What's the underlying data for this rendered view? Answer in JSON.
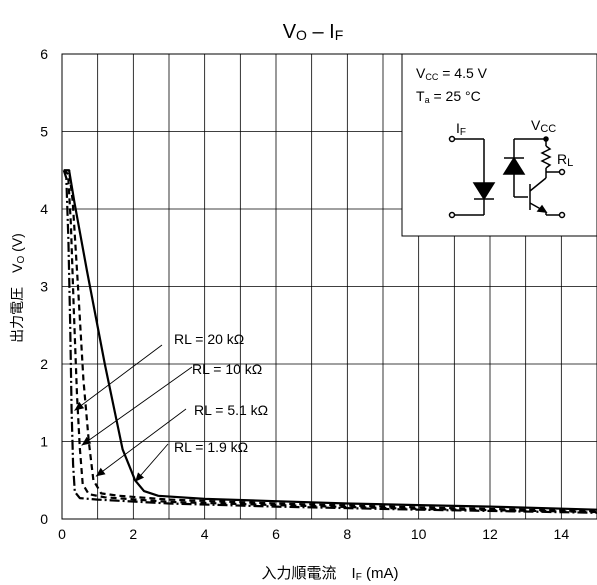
{
  "chart_data": {
    "type": "line",
    "title": "VO – IF",
    "xlabel": "入力順電流　IF (mA)",
    "ylabel": "出力電圧　VO (V)",
    "xlim": [
      0,
      15
    ],
    "ylim": [
      0,
      6
    ],
    "xticks": [
      "0",
      "2",
      "4",
      "6",
      "8",
      "10",
      "12",
      "14"
    ],
    "yticks": [
      "0",
      "1",
      "2",
      "3",
      "4",
      "5",
      "6"
    ],
    "grid": true,
    "legend": "none",
    "conditions": [
      "VCC = 4.5 V",
      "Ta = 25 °C"
    ],
    "circuit_labels": {
      "input": "IF",
      "supply": "VCC",
      "load": "RL"
    },
    "series": [
      {
        "name": "RL = 1.9 kΩ",
        "style": "solid",
        "x": [
          0.05,
          0.2,
          0.35,
          0.7,
          1.2,
          1.7,
          2.05,
          2.3,
          2.7,
          4,
          6,
          8,
          10,
          12,
          15
        ],
        "y": [
          4.5,
          4.5,
          4.08,
          3.2,
          2.0,
          0.9,
          0.5,
          0.36,
          0.3,
          0.26,
          0.23,
          0.2,
          0.18,
          0.16,
          0.12
        ]
      },
      {
        "name": "RL = 5.1 kΩ",
        "style": "dashed",
        "x": [
          0.05,
          0.2,
          0.3,
          0.45,
          0.6,
          0.75,
          0.88,
          1.1,
          1.6,
          3,
          6,
          10,
          15
        ],
        "y": [
          4.5,
          4.5,
          4.1,
          3.0,
          1.8,
          1.0,
          0.5,
          0.33,
          0.3,
          0.25,
          0.2,
          0.15,
          0.1
        ]
      },
      {
        "name": "RL = 10 kΩ",
        "style": "dashed",
        "x": [
          0.05,
          0.17,
          0.25,
          0.33,
          0.42,
          0.5,
          0.58,
          0.75,
          1.2,
          3,
          6,
          10,
          15
        ],
        "y": [
          4.5,
          4.45,
          3.8,
          2.7,
          1.6,
          0.92,
          0.45,
          0.32,
          0.28,
          0.22,
          0.18,
          0.13,
          0.09
        ]
      },
      {
        "name": "RL = 20 kΩ",
        "style": "dash-dot",
        "x": [
          0.05,
          0.12,
          0.18,
          0.23,
          0.27,
          0.31,
          0.36,
          0.5,
          1.0,
          3,
          6,
          10,
          15
        ],
        "y": [
          4.5,
          4.4,
          3.6,
          2.5,
          1.4,
          0.7,
          0.35,
          0.27,
          0.25,
          0.2,
          0.16,
          0.12,
          0.08
        ]
      }
    ],
    "annotations": [
      {
        "text": "RL = 20 kΩ",
        "target": [
          0.35,
          1.4
        ]
      },
      {
        "text": "RL = 10 kΩ",
        "target": [
          0.55,
          0.95
        ]
      },
      {
        "text": "RL = 5.1 kΩ",
        "target": [
          0.95,
          0.55
        ]
      },
      {
        "text": "RL = 1.9 kΩ",
        "target": [
          2.05,
          0.48
        ]
      }
    ]
  }
}
